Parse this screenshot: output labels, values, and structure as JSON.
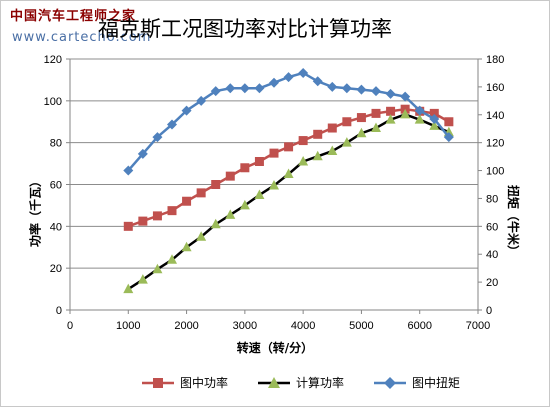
{
  "watermark": {
    "line1": "中国汽车工程师之家",
    "line2": "www.cartecho.com"
  },
  "colors": {
    "red": "#c0504d",
    "black": "#000000",
    "blue": "#4f81bd",
    "marker_black": "#9bbb59"
  },
  "chart_data": {
    "type": "line",
    "title": "福克斯工况图功率对比计算功率",
    "xlabel": "转速（转/分）",
    "ylabel_left": "功率（千瓦）",
    "ylabel_right": "扭矩（牛米）",
    "xlim": [
      0,
      7000
    ],
    "ylim_left": [
      0,
      120
    ],
    "ylim_right": [
      0,
      180
    ],
    "x_ticks": [
      0,
      1000,
      2000,
      3000,
      4000,
      5000,
      6000,
      7000
    ],
    "y_left_ticks": [
      0,
      20,
      40,
      60,
      80,
      100,
      120
    ],
    "y_right_ticks": [
      0,
      20,
      40,
      60,
      80,
      100,
      120,
      140,
      160,
      180
    ],
    "grid": "horizontal",
    "legend_position": "bottom",
    "series": [
      {
        "name": "图中功率",
        "axis": "left",
        "marker": "square",
        "x": [
          1000,
          1250,
          1500,
          1750,
          2000,
          2250,
          2500,
          2750,
          3000,
          3250,
          3500,
          3750,
          4000,
          4250,
          4500,
          4750,
          5000,
          5250,
          5500,
          5750,
          6000,
          6250,
          6500
        ],
        "values": [
          40,
          42.5,
          45,
          47.5,
          52,
          56,
          60,
          64,
          68,
          71,
          75,
          78,
          81,
          84,
          87,
          90,
          92,
          94,
          95,
          96,
          95,
          94,
          90
        ]
      },
      {
        "name": "计算功率",
        "axis": "left",
        "marker": "triangle",
        "x": [
          1000,
          1250,
          1500,
          1750,
          2000,
          2250,
          2500,
          2750,
          3000,
          3250,
          3500,
          3750,
          4000,
          4250,
          4500,
          4750,
          5000,
          5250,
          5500,
          5750,
          6000,
          6250,
          6500
        ],
        "values": [
          10,
          14.5,
          19.5,
          24,
          30,
          35,
          41,
          45.5,
          50,
          55,
          59.5,
          65,
          71,
          73.5,
          76,
          80,
          84.5,
          87,
          91,
          93.5,
          91,
          88,
          85
        ]
      },
      {
        "name": "图中扭矩",
        "axis": "right",
        "marker": "diamond",
        "x": [
          1000,
          1250,
          1500,
          1750,
          2000,
          2250,
          2500,
          2750,
          3000,
          3250,
          3500,
          3750,
          4000,
          4250,
          4500,
          4750,
          5000,
          5250,
          5500,
          5750,
          6000,
          6250,
          6500
        ],
        "values": [
          100,
          112,
          124,
          133,
          143,
          150,
          157,
          159,
          159,
          159,
          163,
          167,
          170,
          164,
          160,
          159,
          158,
          157,
          155,
          153,
          143,
          137,
          124
        ]
      }
    ]
  }
}
